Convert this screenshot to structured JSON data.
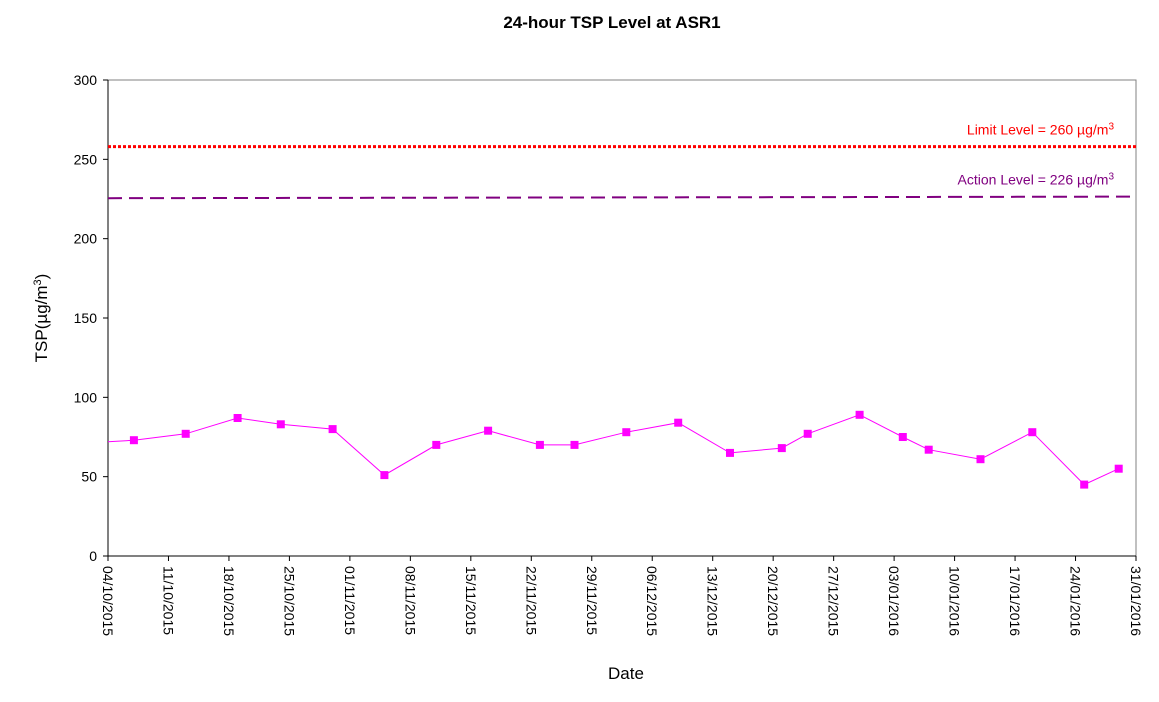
{
  "chart_data": {
    "type": "line",
    "title": "24-hour TSP Level at ASR1",
    "xlabel": "Date",
    "ylabel_main": "TSP(µg/m",
    "ylabel_sup": "3",
    "ylabel_tail": ")",
    "ylim": [
      0,
      300
    ],
    "yticks": [
      0,
      50,
      100,
      150,
      200,
      250,
      300
    ],
    "xlim": [
      "2015-10-04",
      "2016-01-31"
    ],
    "xtick_labels": [
      "04/10/2015",
      "11/10/2015",
      "18/10/2015",
      "25/10/2015",
      "01/11/2015",
      "08/11/2015",
      "15/11/2015",
      "22/11/2015",
      "29/11/2015",
      "06/12/2015",
      "13/12/2015",
      "20/12/2015",
      "27/12/2015",
      "03/01/2016",
      "10/01/2016",
      "17/01/2016",
      "24/01/2016",
      "31/01/2016"
    ],
    "grid": false,
    "series": [
      {
        "color": "#ff00ff",
        "marker": "square",
        "x": [
          "2015-10-07",
          "2015-10-13",
          "2015-10-19",
          "2015-10-24",
          "2015-10-30",
          "2015-11-05",
          "2015-11-11",
          "2015-11-17",
          "2015-11-23",
          "2015-11-27",
          "2015-12-03",
          "2015-12-09",
          "2015-12-15",
          "2015-12-21",
          "2015-12-24",
          "2015-12-30",
          "2016-01-04",
          "2016-01-07",
          "2016-01-13",
          "2016-01-19",
          "2016-01-25",
          "2016-01-29"
        ],
        "y": [
          73,
          77,
          87,
          83,
          80,
          51,
          70,
          79,
          70,
          70,
          78,
          84,
          65,
          68,
          77,
          89,
          75,
          67,
          61,
          78,
          45,
          55
        ],
        "lead_in_y": 72
      }
    ],
    "reference_lines": [
      {
        "label_main": "Limit Level = 260 µg/m",
        "label_sup": "3",
        "value": 260,
        "color": "#ff0000",
        "style": "dotted",
        "y_start": 258,
        "y_end": 258
      },
      {
        "label_main": "Action Level = 226 µg/m",
        "label_sup": "3",
        "value": 226,
        "color": "#800080",
        "style": "dashed",
        "y_start": 225.5,
        "y_end": 226.5
      }
    ]
  }
}
